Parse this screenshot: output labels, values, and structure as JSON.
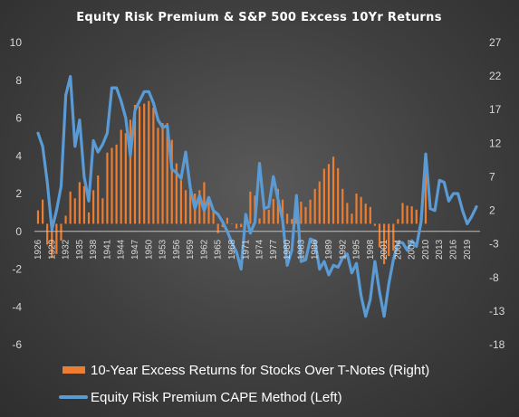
{
  "chart_data": {
    "type": "bar+line",
    "title": "Equity Risk Premium & S&P 500 Excess 10Yr Returns",
    "legend_placement": "bottom",
    "grid": false,
    "left_axis": {
      "ticks": [
        10,
        8,
        6,
        4,
        2,
        0,
        -2,
        -4,
        -6
      ],
      "range": [
        -6,
        10
      ]
    },
    "right_axis": {
      "ticks": [
        27,
        22,
        17,
        12,
        7,
        2,
        -3,
        -8,
        -13,
        -18
      ],
      "range": [
        -18,
        27
      ]
    },
    "x_tick_labels": [
      "1926",
      "1929",
      "1932",
      "1935",
      "1938",
      "1941",
      "1944",
      "1947",
      "1950",
      "1953",
      "1956",
      "1959",
      "1962",
      "1965",
      "1968",
      "1971",
      "1974",
      "1977",
      "1980",
      "1983",
      "1986",
      "1989",
      "1992",
      "1995",
      "1998",
      "2001",
      "2004",
      "2007",
      "2010",
      "2013",
      "2016",
      "2019"
    ],
    "series": [
      {
        "name": "10-Year Excess Returns for Stocks Over T-Notes (Right)",
        "kind": "bar",
        "axis": "right",
        "color": "#ed7d31",
        "x": [
          1926,
          1927,
          1928,
          1929,
          1930,
          1931,
          1932,
          1933,
          1934,
          1935,
          1936,
          1937,
          1938,
          1939,
          1940,
          1941,
          1942,
          1943,
          1944,
          1945,
          1946,
          1947,
          1948,
          1949,
          1950,
          1951,
          1952,
          1953,
          1954,
          1955,
          1956,
          1957,
          1958,
          1959,
          1960,
          1961,
          1962,
          1963,
          1964,
          1965,
          1966,
          1967,
          1968,
          1969,
          1970,
          1971,
          1972,
          1973,
          1974,
          1975,
          1976,
          1977,
          1978,
          1979,
          1980,
          1981,
          1982,
          1983,
          1984,
          1985,
          1986,
          1987,
          1988,
          1989,
          1990,
          1991,
          1992,
          1993,
          1994,
          1995,
          1996,
          1997,
          1998,
          1999,
          2000,
          2001,
          2002,
          2003,
          2004,
          2005,
          2006,
          2007,
          2008,
          2009,
          2010
        ],
        "values": [
          2.0,
          3.6,
          -3.1,
          -5.1,
          -4.5,
          -2.5,
          1.2,
          4.8,
          3.8,
          6.2,
          5.6,
          1.7,
          5.0,
          7.2,
          3.8,
          10.6,
          11.3,
          11.8,
          14.0,
          13.5,
          15.5,
          17.7,
          17.5,
          17.9,
          18.3,
          17.3,
          14.3,
          15.0,
          15.0,
          12.5,
          9.0,
          6.5,
          5.0,
          5.7,
          4.5,
          5.0,
          6.2,
          3.2,
          2.1,
          -1.4,
          -0.5,
          0.9,
          0.0,
          -0.7,
          -0.5,
          0.8,
          4.8,
          4.2,
          0.8,
          3.2,
          2.1,
          3.7,
          5.2,
          3.6,
          1.5,
          0.7,
          2.3,
          3.3,
          2.5,
          3.6,
          5.2,
          6.3,
          8.2,
          8.9,
          10.0,
          8.3,
          5.2,
          3.1,
          1.5,
          4.5,
          4.0,
          3.0,
          2.5,
          -0.3,
          -3.5,
          -6.0,
          -4.8,
          -4.0,
          0.7,
          3.1,
          2.7,
          2.6,
          2.1,
          1.0,
          8.6
        ]
      },
      {
        "name": "Equity Risk Premium CAPE Method (Left)",
        "kind": "line",
        "axis": "left",
        "color": "#5b9bd5",
        "x": [
          1926,
          1927,
          1928,
          1929,
          1930,
          1931,
          1932,
          1933,
          1934,
          1935,
          1936,
          1937,
          1938,
          1939,
          1940,
          1941,
          1942,
          1943,
          1944,
          1945,
          1946,
          1947,
          1948,
          1949,
          1950,
          1951,
          1952,
          1953,
          1954,
          1955,
          1956,
          1957,
          1958,
          1959,
          1960,
          1961,
          1962,
          1963,
          1964,
          1965,
          1966,
          1967,
          1968,
          1969,
          1970,
          1971,
          1972,
          1973,
          1974,
          1975,
          1976,
          1977,
          1978,
          1979,
          1980,
          1981,
          1982,
          1983,
          1984,
          1985,
          1986,
          1987,
          1988,
          1989,
          1990,
          1991,
          1992,
          1993,
          1994,
          1995,
          1996,
          1997,
          1998,
          1999,
          2000,
          2001,
          2002,
          2003,
          2004,
          2005,
          2006,
          2007,
          2008,
          2009,
          2010,
          2011,
          2012,
          2013,
          2014,
          2015,
          2016,
          2017,
          2018,
          2019,
          2020,
          2021
        ],
        "values": [
          5.2,
          4.5,
          2.6,
          0.1,
          1.1,
          2.4,
          7.2,
          8.2,
          4.5,
          5.9,
          2.9,
          1.6,
          4.8,
          4.2,
          4.6,
          5.2,
          7.6,
          7.6,
          6.9,
          6.0,
          4.0,
          6.4,
          6.9,
          7.4,
          7.4,
          6.8,
          5.9,
          5.5,
          5.6,
          3.3,
          3.1,
          2.8,
          4.2,
          2.3,
          1.2,
          1.9,
          1.1,
          1.8,
          1.1,
          0.9,
          0.5,
          0.0,
          -0.6,
          -1.1,
          -2.0,
          0.9,
          -0.1,
          0.5,
          3.6,
          1.2,
          1.3,
          2.9,
          1.7,
          0.6,
          -1.8,
          -1.0,
          1.9,
          -1.6,
          -1.5,
          -0.4,
          -0.5,
          -2.0,
          -1.6,
          -2.3,
          -1.8,
          -1.9,
          -1.4,
          -1.2,
          -2.2,
          -1.7,
          -3.4,
          -4.5,
          -3.6,
          -1.6,
          -3.2,
          -4.5,
          -2.8,
          -1.5,
          -0.6,
          -0.6,
          -1.0,
          -0.5,
          -0.8,
          0.5,
          4.1,
          1.2,
          1.1,
          2.7,
          2.6,
          1.6,
          2.0,
          2.0,
          1.1,
          0.4,
          0.8,
          1.3
        ]
      }
    ]
  }
}
